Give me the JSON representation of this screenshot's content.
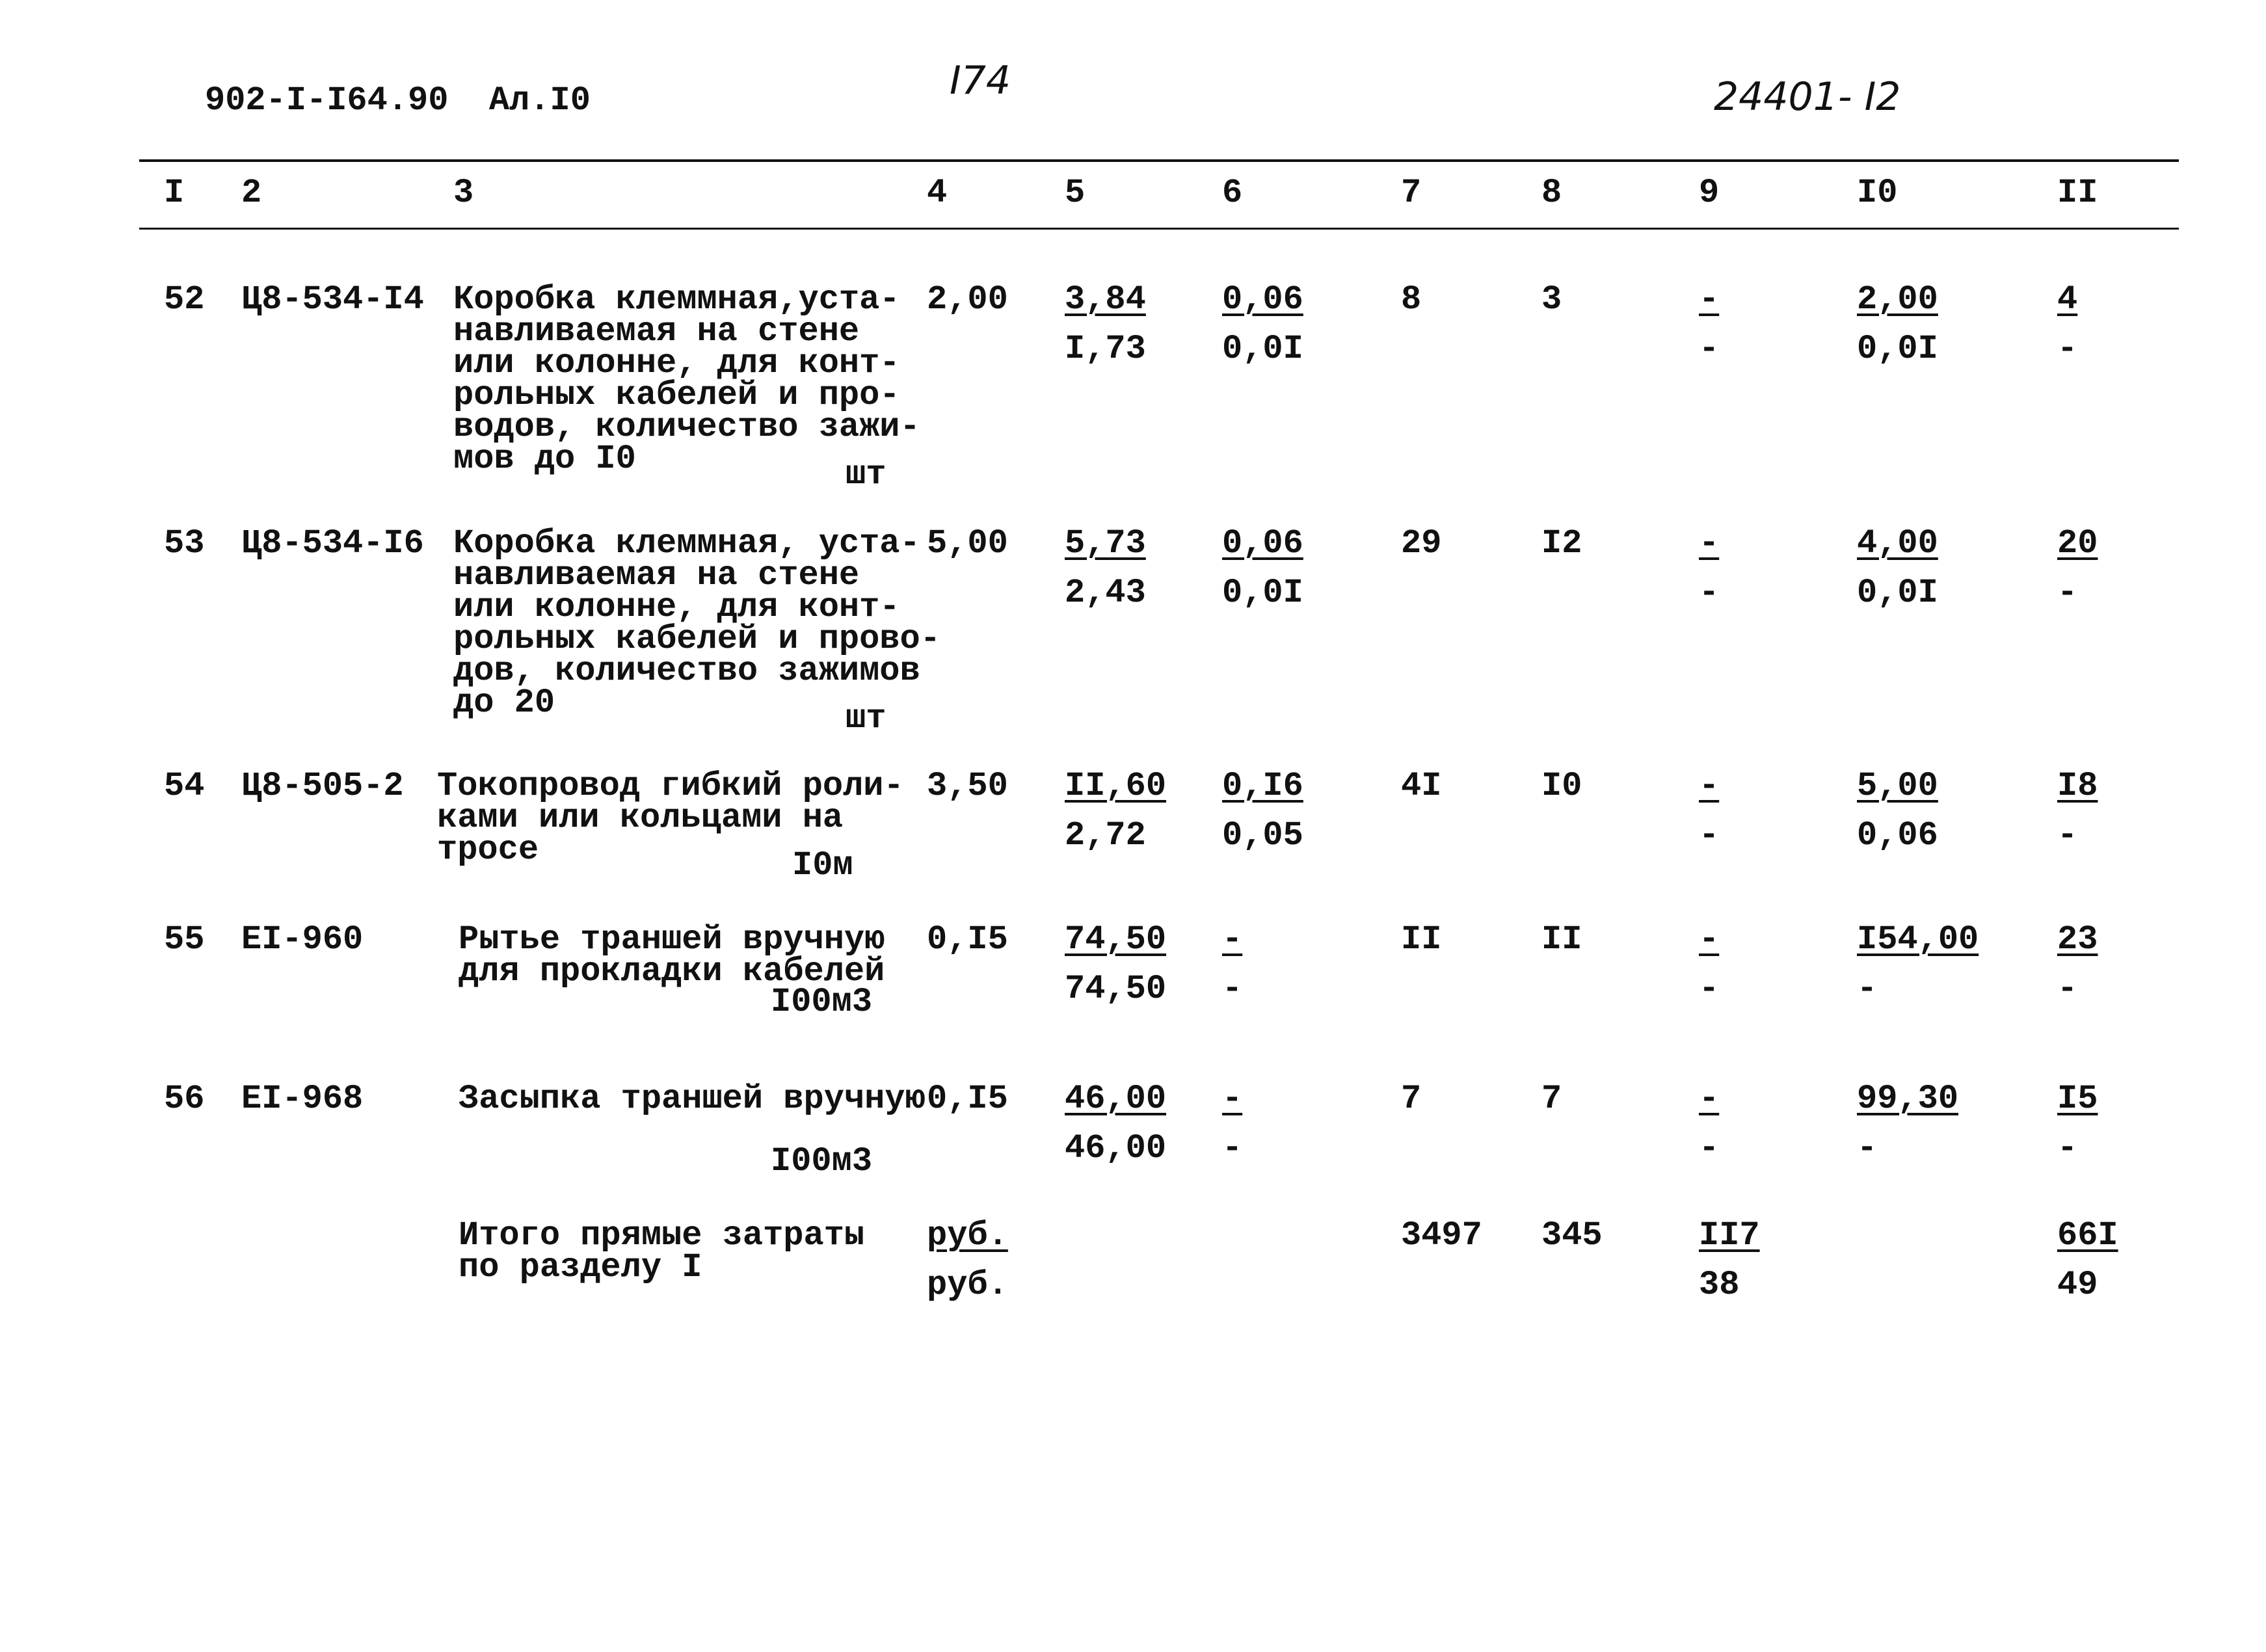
{
  "header": {
    "doc_code": "902-I-I64.90  Ал.I0",
    "page_number": "I74",
    "sheet_code": "24401- I2"
  },
  "columns": [
    "I",
    "2",
    "3",
    "4",
    "5",
    "6",
    "7",
    "8",
    "9",
    "I0",
    "II"
  ],
  "rows": [
    {
      "no": "52",
      "code": "Ц8-534-I4",
      "desc": [
        "Коробка клеммная,уста-",
        "навливаемая на стене",
        "или колонне, для конт-",
        "рольных кабелей и про-",
        "водов, количество зажи-",
        "мов до I0"
      ],
      "unit": "шт",
      "c4": "2,00",
      "c5": [
        "3,84",
        "I,73"
      ],
      "c6": [
        "0,06",
        "0,0I"
      ],
      "c7": "8",
      "c8": "3",
      "c9": [
        "-",
        "-"
      ],
      "c10": [
        "2,00",
        "0,0I"
      ],
      "c11": [
        "4",
        "-"
      ]
    },
    {
      "no": "53",
      "code": "Ц8-534-I6",
      "desc": [
        "Коробка клеммная, уста-",
        "навливаемая на стене",
        "или колонне, для конт-",
        "рольных кабелей и прово-",
        "дов, количество зажимов",
        "до 20"
      ],
      "unit": "шт",
      "c4": "5,00",
      "c5": [
        "5,73",
        "2,43"
      ],
      "c6": [
        "0,06",
        "0,0I"
      ],
      "c7": "29",
      "c8": "I2",
      "c9": [
        "-",
        "-"
      ],
      "c10": [
        "4,00",
        "0,0I"
      ],
      "c11": [
        "20",
        "-"
      ]
    },
    {
      "no": "54",
      "code": "Ц8-505-2",
      "desc": [
        "Токопровод гибкий роли-",
        "ками или кольцами на",
        "тросе"
      ],
      "unit": "I0м",
      "c4": "3,50",
      "c5": [
        "II,60",
        "2,72"
      ],
      "c6": [
        "0,I6",
        "0,05"
      ],
      "c7": "4I",
      "c8": "I0",
      "c9": [
        "-",
        "-"
      ],
      "c10": [
        "5,00",
        "0,06"
      ],
      "c11": [
        "I8",
        "-"
      ]
    },
    {
      "no": "55",
      "code": "EI-960",
      "desc": [
        "Рытье траншей вручную",
        "для прокладки кабелей"
      ],
      "unit": "I00м3",
      "c4": "0,I5",
      "c5": [
        "74,50",
        "74,50"
      ],
      "c6": [
        "-",
        "-"
      ],
      "c7": "II",
      "c8": "II",
      "c9": [
        "-",
        "-"
      ],
      "c10": [
        "I54,00",
        "-"
      ],
      "c11": [
        "23",
        "-"
      ]
    },
    {
      "no": "56",
      "code": "EI-968",
      "desc": [
        "Засыпка траншей вручную"
      ],
      "unit": "I00м3",
      "c4": "0,I5",
      "c5": [
        "46,00",
        "46,00"
      ],
      "c6": [
        "-",
        "-"
      ],
      "c7": "7",
      "c8": "7",
      "c9": [
        "-",
        "-"
      ],
      "c10": [
        "99,30",
        "-"
      ],
      "c11": [
        "I5",
        "-"
      ]
    }
  ],
  "total": {
    "desc": [
      "Итого прямые затраты",
      "по разделу I"
    ],
    "c4": [
      "руб.",
      "руб."
    ],
    "c7": "3497",
    "c8": "345",
    "c9": [
      "II7",
      "38"
    ],
    "c11": [
      "66I",
      "49"
    ]
  }
}
